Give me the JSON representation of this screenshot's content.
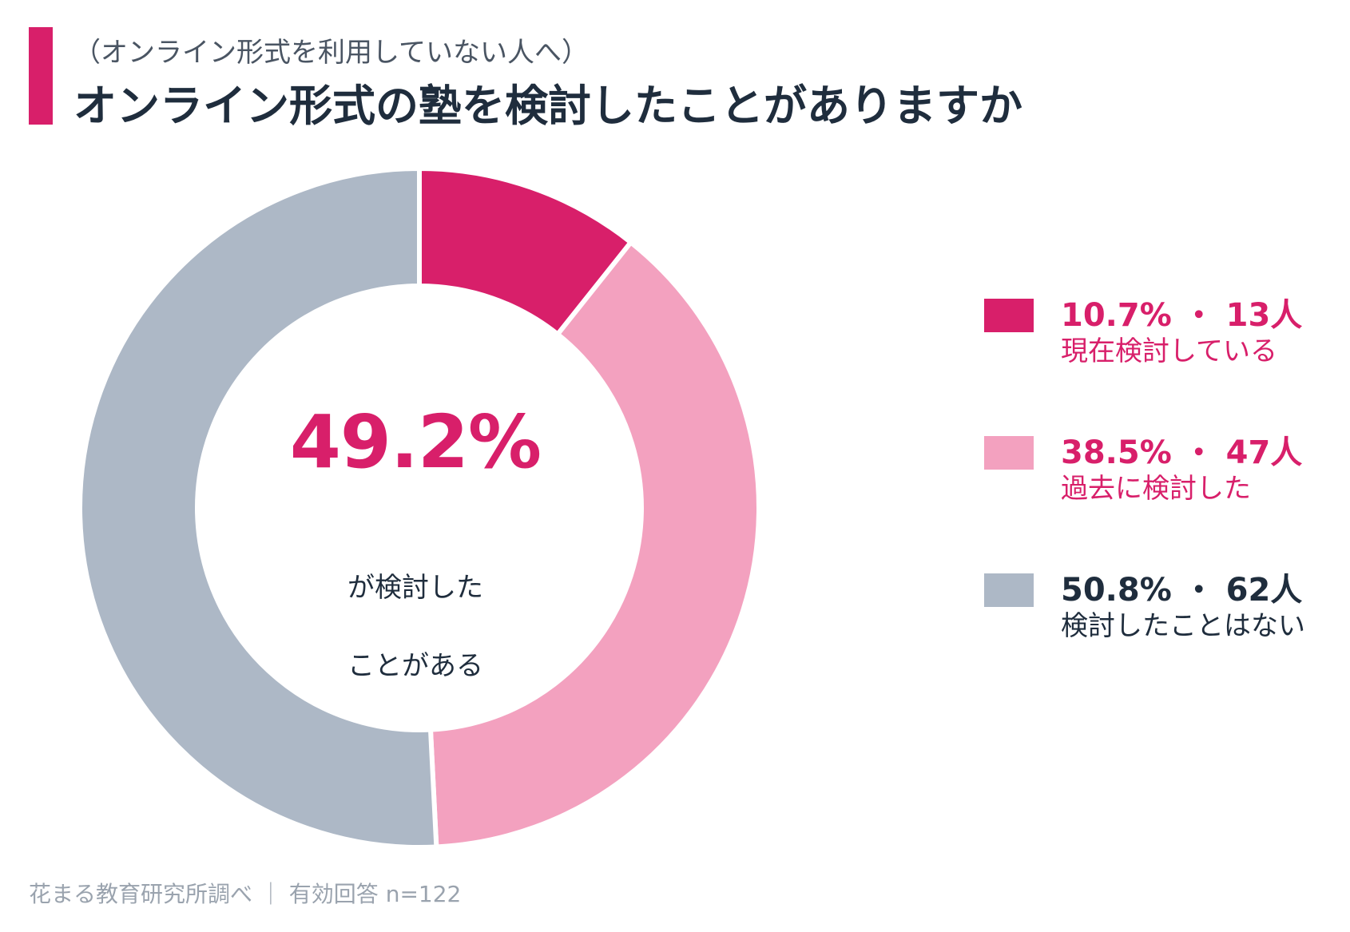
{
  "header": {
    "subtitle": "（オンライン形式を利用していない人へ）",
    "title": "オンライン形式の塾を検討したことがありますか"
  },
  "colors": {
    "accent": "#d81f6a",
    "pink": "#f3a1bf",
    "gray": "#adb8c6",
    "dark_text": "#1f2d3d",
    "footer_text": "#9aa3ae"
  },
  "center": {
    "percent": "49.2%",
    "line1": "が検討した",
    "line2": "ことがある"
  },
  "legend": {
    "items": [
      {
        "head": "10.7% ・ 13人",
        "sub": "現在検討している",
        "color": "#d81f6a",
        "text_color": "#d81f6a"
      },
      {
        "head": "38.5% ・ 47人",
        "sub": "過去に検討した",
        "color": "#f3a1bf",
        "text_color": "#d81f6a"
      },
      {
        "head": "50.8% ・ 62人",
        "sub": "検討したことはない",
        "color": "#adb8c6",
        "text_color": "#1f2d3d"
      }
    ]
  },
  "chart_data": {
    "type": "pie",
    "categories": [
      "現在検討している",
      "過去に検討した",
      "検討したことはない"
    ],
    "values": [
      10.7,
      38.5,
      50.8
    ],
    "counts": [
      13,
      47,
      62
    ],
    "colors": [
      "#d81f6a",
      "#f3a1bf",
      "#adb8c6"
    ],
    "title": "オンライン形式の塾を検討したことがありますか",
    "legend_position": "right"
  },
  "footer": {
    "text": "花まる教育研究所調べ ｜ 有効回答 n=122"
  }
}
